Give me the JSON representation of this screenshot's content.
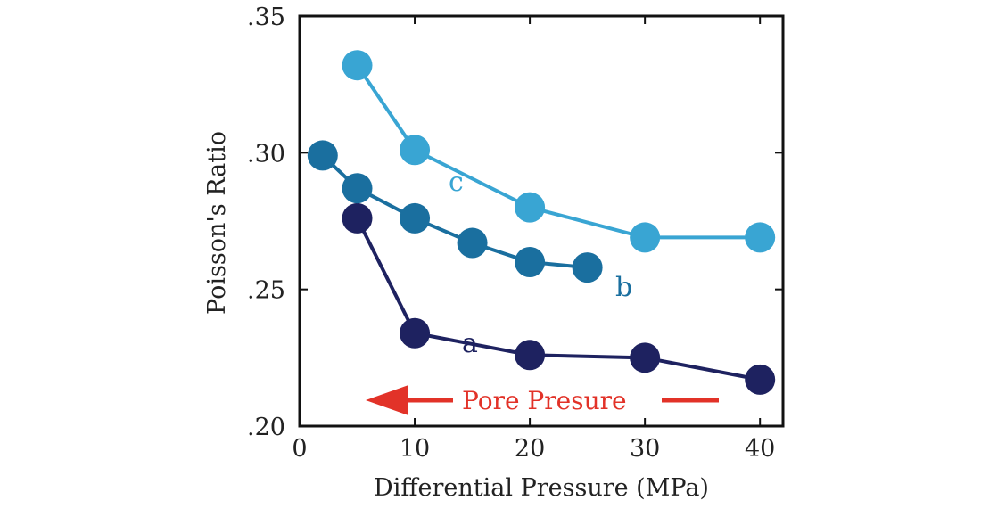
{
  "chart_data": {
    "type": "line",
    "title": "",
    "xlabel": "Differential Pressure (MPa)",
    "ylabel": "Poisson's Ratio",
    "xlim": [
      0,
      42
    ],
    "ylim": [
      0.2,
      0.35
    ],
    "x_ticks": [
      0,
      10,
      20,
      30,
      40
    ],
    "x_tick_labels": [
      "0",
      "10",
      "20",
      "30",
      "40"
    ],
    "y_ticks": [
      0.2,
      0.25,
      0.3,
      0.35
    ],
    "y_tick_labels": [
      ".20",
      ".25",
      ".30",
      ".35"
    ],
    "grid": false,
    "series": [
      {
        "name": "a",
        "color": "#1e2260",
        "points": [
          [
            5,
            0.276
          ],
          [
            10,
            0.234
          ],
          [
            20,
            0.226
          ],
          [
            30,
            0.225
          ],
          [
            40,
            0.217
          ]
        ]
      },
      {
        "name": "b",
        "color": "#1a6f9f",
        "points": [
          [
            2,
            0.299
          ],
          [
            5,
            0.287
          ],
          [
            10,
            0.276
          ],
          [
            15,
            0.267
          ],
          [
            20,
            0.26
          ],
          [
            25,
            0.258
          ]
        ]
      },
      {
        "name": "c",
        "color": "#39a5d3",
        "points": [
          [
            5,
            0.332
          ],
          [
            10,
            0.301
          ],
          [
            20,
            0.28
          ],
          [
            30,
            0.269
          ],
          [
            40,
            0.269
          ]
        ]
      }
    ],
    "annotation": {
      "text": "Pore Presure",
      "color": "#e23228",
      "direction": "left"
    }
  }
}
